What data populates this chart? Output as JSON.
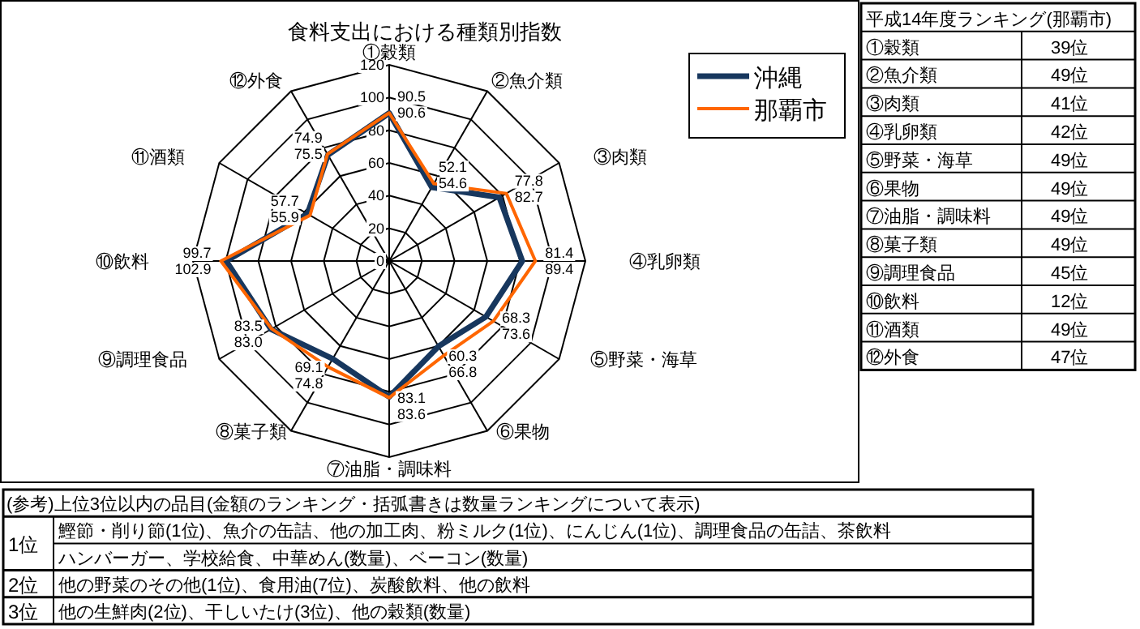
{
  "chart_data": [
    {
      "type": "radar",
      "title": "食料支出における種類別指数",
      "categories": [
        "①穀類",
        "②魚介類",
        "③肉類",
        "④乳卵類",
        "⑤野菜・海草",
        "⑥果物",
        "⑦油脂・調味料",
        "⑧菓子類",
        "⑨調理食品",
        "⑩飲料",
        "⑪酒類",
        "⑫外食"
      ],
      "series": [
        {
          "name": "沖縄",
          "color": "#17375e",
          "values": [
            90.5,
            52.1,
            77.8,
            81.4,
            68.3,
            60.3,
            83.1,
            69.1,
            83.5,
            99.7,
            57.7,
            74.9
          ],
          "value_labels": [
            "90.5",
            "52.1",
            "77.8",
            "81.4",
            "68.3",
            "60.3",
            "83.1",
            "69.1",
            "83.5",
            "99.7",
            "57.7",
            "74.9"
          ]
        },
        {
          "name": "那覇市",
          "color": "#ff6600",
          "values": [
            90.6,
            54.6,
            82.7,
            89.4,
            73.6,
            66.8,
            83.6,
            74.8,
            83.0,
            102.9,
            55.9,
            75.5
          ],
          "value_labels": [
            "90.6",
            "54.6",
            "82.7",
            "89.4",
            "73.6",
            "66.8",
            "83.6",
            "74.8",
            "83.0",
            "102.9",
            "55.9",
            "75.5"
          ]
        }
      ],
      "ylim": [
        0,
        120
      ],
      "yticks": [
        0,
        20,
        40,
        60,
        80,
        100,
        120
      ],
      "grid": true,
      "legend": "top right"
    },
    {
      "type": "other",
      "title": "平成14年度ランキング(那覇市)",
      "categories": [
        "①穀類",
        "②魚介類",
        "③肉類",
        "④乳卵類",
        "⑤野菜・海草",
        "⑥果物",
        "⑦油脂・調味料",
        "⑧菓子類",
        "⑨調理食品",
        "⑩飲料",
        "⑪酒類",
        "⑫外食"
      ],
      "value_labels": [
        "39位",
        "49位",
        "41位",
        "42位",
        "49位",
        "49位",
        "49位",
        "49位",
        "45位",
        "12位",
        "49位",
        "47位"
      ]
    },
    {
      "type": "other",
      "title": "(参考)上位3位以内の品目(金額のランキング・括弧書きは数量ランキングについて表示)",
      "categories": [
        "1位",
        null,
        "2位",
        "3位"
      ],
      "value_labels": [
        "鰹節・削り節(1位)、魚介の缶詰、他の加工肉、粉ミルク(1位)、にんじん(1位)、調理食品の缶詰、茶飲料",
        "ハンバーガー、学校給食、中華めん(数量)、ベーコン(数量)",
        "他の野菜のその他(1位)、食用油(7位)、炭酸飲料、他の飲料",
        "他の生鮮肉(2位)、干しいたけ(3位)、他の穀類(数量)"
      ]
    }
  ]
}
